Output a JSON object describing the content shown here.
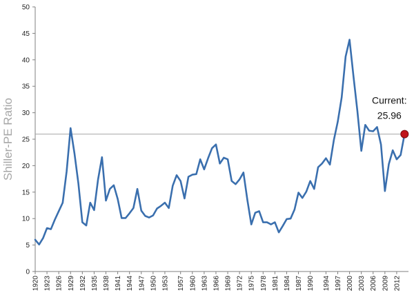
{
  "chart_data": {
    "type": "line",
    "title": "",
    "xlabel": "",
    "ylabel": "Shiller-PE Ratio",
    "ylim": [
      0,
      50
    ],
    "y_ticks": [
      0,
      5,
      10,
      15,
      20,
      25,
      30,
      35,
      40,
      45,
      50
    ],
    "x_range": [
      1920,
      2015
    ],
    "x_ticks": [
      1920,
      1923,
      1926,
      1929,
      1932,
      1935,
      1938,
      1941,
      1944,
      1947,
      1950,
      1953,
      1957,
      1960,
      1963,
      1966,
      1969,
      1972,
      1975,
      1978,
      1981,
      1984,
      1987,
      1990,
      1994,
      1997,
      2000,
      2003,
      2006,
      2009,
      2012
    ],
    "grid": false,
    "line_color": "#3a6fae",
    "reference_line": {
      "value": 25.96,
      "color": "#a6a6a6"
    },
    "series": [
      {
        "name": "",
        "x": [
          1920,
          1921,
          1922,
          1923,
          1924,
          1925,
          1926,
          1927,
          1928,
          1929,
          1930,
          1931,
          1932,
          1933,
          1934,
          1935,
          1936,
          1937,
          1938,
          1939,
          1940,
          1941,
          1942,
          1943,
          1944,
          1945,
          1946,
          1947,
          1948,
          1949,
          1950,
          1951,
          1952,
          1953,
          1954,
          1955,
          1956,
          1957,
          1958,
          1959,
          1960,
          1961,
          1962,
          1963,
          1964,
          1965,
          1966,
          1967,
          1968,
          1969,
          1970,
          1971,
          1972,
          1973,
          1974,
          1975,
          1976,
          1977,
          1978,
          1979,
          1980,
          1981,
          1982,
          1983,
          1984,
          1985,
          1986,
          1987,
          1988,
          1989,
          1990,
          1991,
          1992,
          1993,
          1994,
          1995,
          1996,
          1997,
          1998,
          1999,
          2000,
          2001,
          2002,
          2003,
          2004,
          2005,
          2006,
          2007,
          2008,
          2009,
          2010,
          2011,
          2012,
          2013,
          2014
        ],
        "values": [
          6.0,
          5.1,
          6.3,
          8.2,
          8.0,
          9.8,
          11.4,
          13.0,
          18.9,
          27.1,
          22.3,
          16.6,
          9.3,
          8.7,
          13.0,
          11.6,
          17.4,
          21.6,
          13.4,
          15.6,
          16.3,
          13.7,
          10.1,
          10.1,
          11.0,
          12.0,
          15.6,
          11.5,
          10.5,
          10.2,
          10.6,
          11.9,
          12.4,
          13.0,
          12.0,
          16.2,
          18.2,
          17.1,
          13.8,
          17.9,
          18.3,
          18.4,
          21.2,
          19.3,
          21.4,
          23.3,
          24.0,
          20.4,
          21.5,
          21.2,
          17.1,
          16.5,
          17.4,
          18.7,
          13.5,
          8.9,
          11.1,
          11.4,
          9.3,
          9.3,
          8.9,
          9.3,
          7.4,
          8.6,
          9.9,
          10.0,
          11.7,
          14.9,
          13.9,
          15.1,
          17.1,
          15.6,
          19.7,
          20.4,
          21.4,
          20.2,
          24.8,
          28.3,
          32.9,
          40.6,
          43.8,
          36.9,
          30.3,
          22.8,
          27.7,
          26.6,
          26.5,
          27.3,
          24.0,
          15.2,
          20.3,
          22.9,
          21.2,
          22.0,
          25.96
        ]
      }
    ],
    "current_point": {
      "x": 2014,
      "y": 25.96,
      "color": "#c0151b"
    },
    "annotation": {
      "line1": "Current:",
      "line2": "25.96"
    }
  }
}
